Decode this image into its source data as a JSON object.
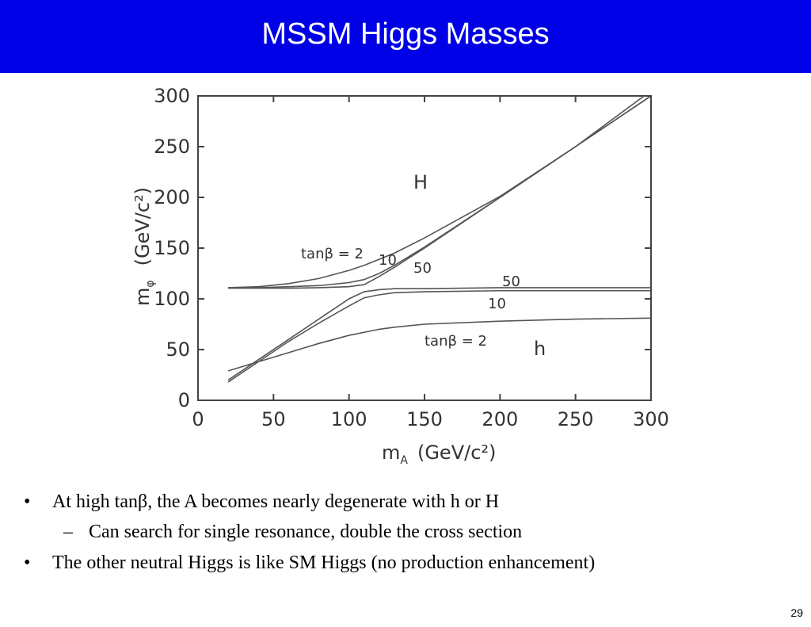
{
  "slide": {
    "title": "MSSM Higgs Masses",
    "bullets": [
      {
        "marker": "•",
        "text": "At high tanβ, the A becomes nearly degenerate with h or H"
      },
      {
        "marker": "–",
        "text": "Can search for single resonance, double the cross section"
      },
      {
        "marker": "•",
        "text": "The other neutral Higgs is like SM Higgs (no production enhancement)"
      }
    ],
    "page_number": "29"
  },
  "chart_data": {
    "type": "line",
    "x_label": {
      "symbol": "m",
      "subscript": "A",
      "unit": "(GeV/c²)"
    },
    "y_label": {
      "symbol": "m",
      "subscript": "φ",
      "unit": "(GeV/c²)"
    },
    "annotations": [
      "H",
      "h"
    ],
    "x": [
      20,
      40,
      60,
      80,
      100,
      110,
      120,
      130,
      150,
      200,
      250,
      300
    ],
    "series": [
      {
        "name": "tanβ = 2",
        "color": "#555555",
        "values": [
          111,
          112,
          115,
          120,
          128,
          133,
          139,
          145,
          160,
          201,
          250,
          305
        ]
      },
      {
        "name": "10",
        "color": "#555555",
        "values": [
          111,
          111,
          112,
          113,
          116,
          119,
          125,
          133,
          151,
          200,
          250,
          300
        ]
      },
      {
        "name": "50",
        "color": "#555555",
        "values": [
          110.5,
          110.5,
          110.5,
          111,
          112,
          114,
          122,
          131,
          150,
          200,
          250,
          300
        ]
      },
      {
        "name": "50",
        "color": "#555555",
        "values": [
          20,
          40,
          60,
          80,
          100,
          107,
          109,
          110,
          110,
          111,
          111,
          111
        ]
      },
      {
        "name": "10",
        "color": "#555555",
        "values": [
          18,
          38,
          58,
          76,
          93,
          101,
          104,
          106,
          107,
          108,
          108,
          108
        ]
      },
      {
        "name": "tanβ = 2",
        "color": "#555555",
        "values": [
          29,
          38,
          47,
          56,
          64,
          67,
          70,
          72,
          75,
          78,
          80,
          81
        ]
      }
    ],
    "xlim": [
      0,
      300
    ],
    "ylim": [
      0,
      300
    ],
    "xticks": [
      0,
      50,
      100,
      150,
      200,
      250,
      300
    ],
    "yticks": [
      0,
      50,
      100,
      150,
      200,
      250,
      300
    ]
  }
}
